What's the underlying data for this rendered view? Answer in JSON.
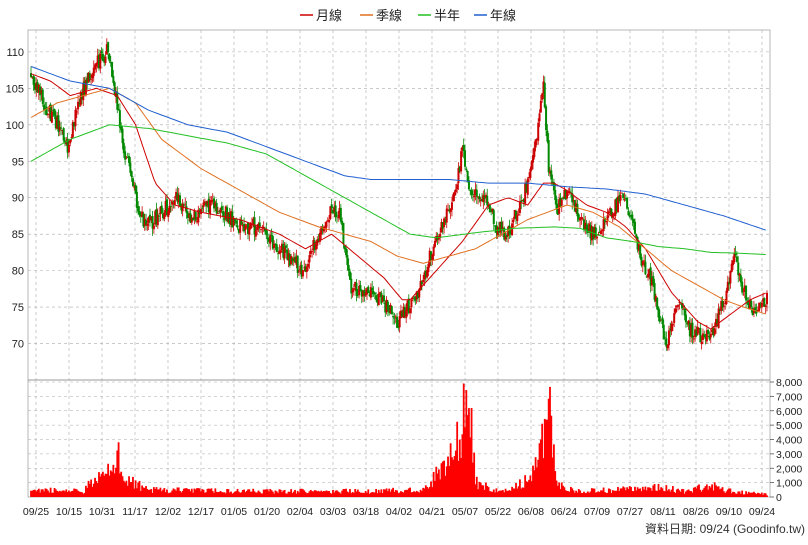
{
  "legend": [
    {
      "label": "月線",
      "color": "#cc0000"
    },
    {
      "label": "季線",
      "color": "#e07020"
    },
    {
      "label": "半年",
      "color": "#22c022"
    },
    {
      "label": "年線",
      "color": "#2060d0"
    }
  ],
  "source_label": "資料日期: 09/24  (Goodinfo.tw)",
  "chart_data": {
    "type": "candlestick+volume",
    "x_tick_labels": [
      "09/25",
      "10/15",
      "10/31",
      "11/17",
      "12/02",
      "12/17",
      "01/05",
      "01/20",
      "02/04",
      "03/03",
      "03/18",
      "04/02",
      "04/21",
      "05/07",
      "05/22",
      "06/08",
      "06/24",
      "07/09",
      "07/27",
      "08/11",
      "08/26",
      "09/10",
      "09/24"
    ],
    "price_axis": {
      "ticks": [
        70,
        75,
        80,
        85,
        90,
        95,
        100,
        105,
        110
      ],
      "range": [
        65,
        113
      ]
    },
    "volume_axis": {
      "ticks": [
        "0",
        "1,000",
        "2,000",
        "3,000",
        "4,000",
        "5,000",
        "6,000",
        "7,000",
        "8,000"
      ],
      "range": [
        0,
        8000
      ]
    },
    "grid": true,
    "colors": {
      "up": "#cc0000",
      "down": "#008800",
      "volume": "#ff0000",
      "grid": "#aaaaaa"
    },
    "price_path_keypoints": [
      [
        0,
        107
      ],
      [
        10,
        103
      ],
      [
        20,
        100
      ],
      [
        28,
        97
      ],
      [
        38,
        104
      ],
      [
        48,
        108
      ],
      [
        58,
        110
      ],
      [
        66,
        103
      ],
      [
        72,
        96
      ],
      [
        80,
        90
      ],
      [
        88,
        86
      ],
      [
        100,
        88
      ],
      [
        112,
        90
      ],
      [
        124,
        87
      ],
      [
        136,
        89
      ],
      [
        148,
        88
      ],
      [
        160,
        86
      ],
      [
        172,
        86
      ],
      [
        184,
        84
      ],
      [
        196,
        82
      ],
      [
        208,
        80
      ],
      [
        218,
        84
      ],
      [
        228,
        88
      ],
      [
        236,
        88
      ],
      [
        244,
        78
      ],
      [
        254,
        77
      ],
      [
        262,
        77
      ],
      [
        272,
        75
      ],
      [
        280,
        73
      ],
      [
        288,
        75
      ],
      [
        300,
        78
      ],
      [
        308,
        84
      ],
      [
        318,
        88
      ],
      [
        326,
        92
      ],
      [
        330,
        97
      ],
      [
        336,
        91
      ],
      [
        344,
        90
      ],
      [
        350,
        89
      ],
      [
        356,
        86
      ],
      [
        364,
        85
      ],
      [
        372,
        88
      ],
      [
        380,
        92
      ],
      [
        386,
        97
      ],
      [
        392,
        105
      ],
      [
        396,
        94
      ],
      [
        402,
        88
      ],
      [
        408,
        91
      ],
      [
        416,
        89
      ],
      [
        424,
        86
      ],
      [
        432,
        85
      ],
      [
        440,
        87
      ],
      [
        452,
        90
      ],
      [
        460,
        87
      ],
      [
        466,
        82
      ],
      [
        474,
        79
      ],
      [
        480,
        74
      ],
      [
        486,
        70
      ],
      [
        490,
        73
      ],
      [
        496,
        75
      ],
      [
        504,
        72
      ],
      [
        512,
        71
      ],
      [
        520,
        71
      ],
      [
        526,
        74
      ],
      [
        532,
        77
      ],
      [
        538,
        82
      ],
      [
        544,
        78
      ],
      [
        550,
        75
      ],
      [
        556,
        75
      ],
      [
        563,
        76
      ]
    ],
    "volume_path_keypoints": [
      [
        0,
        500
      ],
      [
        40,
        400
      ],
      [
        56,
        2000
      ],
      [
        62,
        2200
      ],
      [
        66,
        3600
      ],
      [
        72,
        1200
      ],
      [
        90,
        500
      ],
      [
        150,
        400
      ],
      [
        200,
        400
      ],
      [
        260,
        400
      ],
      [
        300,
        500
      ],
      [
        324,
        3000
      ],
      [
        330,
        5000
      ],
      [
        334,
        8000
      ],
      [
        340,
        1000
      ],
      [
        360,
        400
      ],
      [
        380,
        1200
      ],
      [
        392,
        4000
      ],
      [
        396,
        7500
      ],
      [
        402,
        900
      ],
      [
        420,
        400
      ],
      [
        450,
        500
      ],
      [
        480,
        700
      ],
      [
        500,
        400
      ],
      [
        520,
        800
      ],
      [
        530,
        500
      ],
      [
        545,
        300
      ],
      [
        563,
        200
      ]
    ],
    "ma_month_keypoints": [
      [
        0,
        107
      ],
      [
        15,
        106
      ],
      [
        30,
        104
      ],
      [
        50,
        105
      ],
      [
        66,
        104
      ],
      [
        80,
        100
      ],
      [
        95,
        92
      ],
      [
        110,
        89
      ],
      [
        130,
        88
      ],
      [
        160,
        87
      ],
      [
        190,
        85
      ],
      [
        210,
        83
      ],
      [
        230,
        85
      ],
      [
        250,
        82
      ],
      [
        270,
        79
      ],
      [
        284,
        76
      ],
      [
        290,
        76
      ],
      [
        310,
        80
      ],
      [
        330,
        84
      ],
      [
        350,
        89
      ],
      [
        365,
        90
      ],
      [
        380,
        89
      ],
      [
        392,
        92
      ],
      [
        400,
        92
      ],
      [
        410,
        91
      ],
      [
        425,
        89
      ],
      [
        440,
        88
      ],
      [
        455,
        86
      ],
      [
        470,
        83
      ],
      [
        480,
        80
      ],
      [
        490,
        77
      ],
      [
        500,
        75
      ],
      [
        510,
        73
      ],
      [
        520,
        72
      ],
      [
        535,
        74
      ],
      [
        550,
        76
      ],
      [
        563,
        77
      ]
    ],
    "ma_quarter_keypoints": [
      [
        0,
        101
      ],
      [
        20,
        103
      ],
      [
        40,
        104
      ],
      [
        60,
        105
      ],
      [
        80,
        103
      ],
      [
        100,
        98
      ],
      [
        130,
        94
      ],
      [
        160,
        91
      ],
      [
        190,
        88
      ],
      [
        220,
        86
      ],
      [
        240,
        85
      ],
      [
        260,
        84
      ],
      [
        280,
        82
      ],
      [
        300,
        81
      ],
      [
        320,
        82
      ],
      [
        340,
        83
      ],
      [
        360,
        85
      ],
      [
        380,
        87
      ],
      [
        395,
        88
      ],
      [
        410,
        89
      ],
      [
        430,
        88
      ],
      [
        450,
        86
      ],
      [
        470,
        83
      ],
      [
        490,
        80
      ],
      [
        510,
        78
      ],
      [
        530,
        76
      ],
      [
        545,
        75
      ],
      [
        563,
        74
      ]
    ],
    "ma_half_keypoints": [
      [
        0,
        95
      ],
      [
        30,
        98
      ],
      [
        60,
        100
      ],
      [
        90,
        99.5
      ],
      [
        120,
        98.5
      ],
      [
        150,
        97.5
      ],
      [
        180,
        96
      ],
      [
        210,
        93
      ],
      [
        240,
        90
      ],
      [
        270,
        87
      ],
      [
        290,
        85
      ],
      [
        310,
        84.5
      ],
      [
        340,
        85.2
      ],
      [
        370,
        85.8
      ],
      [
        400,
        86
      ],
      [
        420,
        85.8
      ],
      [
        440,
        84.5
      ],
      [
        460,
        84
      ],
      [
        480,
        83.3
      ],
      [
        500,
        83
      ],
      [
        520,
        82.5
      ],
      [
        540,
        82.4
      ],
      [
        563,
        82.2
      ]
    ],
    "ma_year_keypoints": [
      [
        0,
        108
      ],
      [
        30,
        106
      ],
      [
        60,
        105
      ],
      [
        90,
        102
      ],
      [
        120,
        100
      ],
      [
        150,
        99
      ],
      [
        180,
        97
      ],
      [
        210,
        95
      ],
      [
        240,
        93
      ],
      [
        260,
        92.5
      ],
      [
        290,
        92.5
      ],
      [
        320,
        92.5
      ],
      [
        350,
        92
      ],
      [
        380,
        92
      ],
      [
        410,
        91.5
      ],
      [
        440,
        91.2
      ],
      [
        470,
        90.5
      ],
      [
        500,
        89
      ],
      [
        530,
        87.5
      ],
      [
        563,
        85.5
      ]
    ]
  }
}
